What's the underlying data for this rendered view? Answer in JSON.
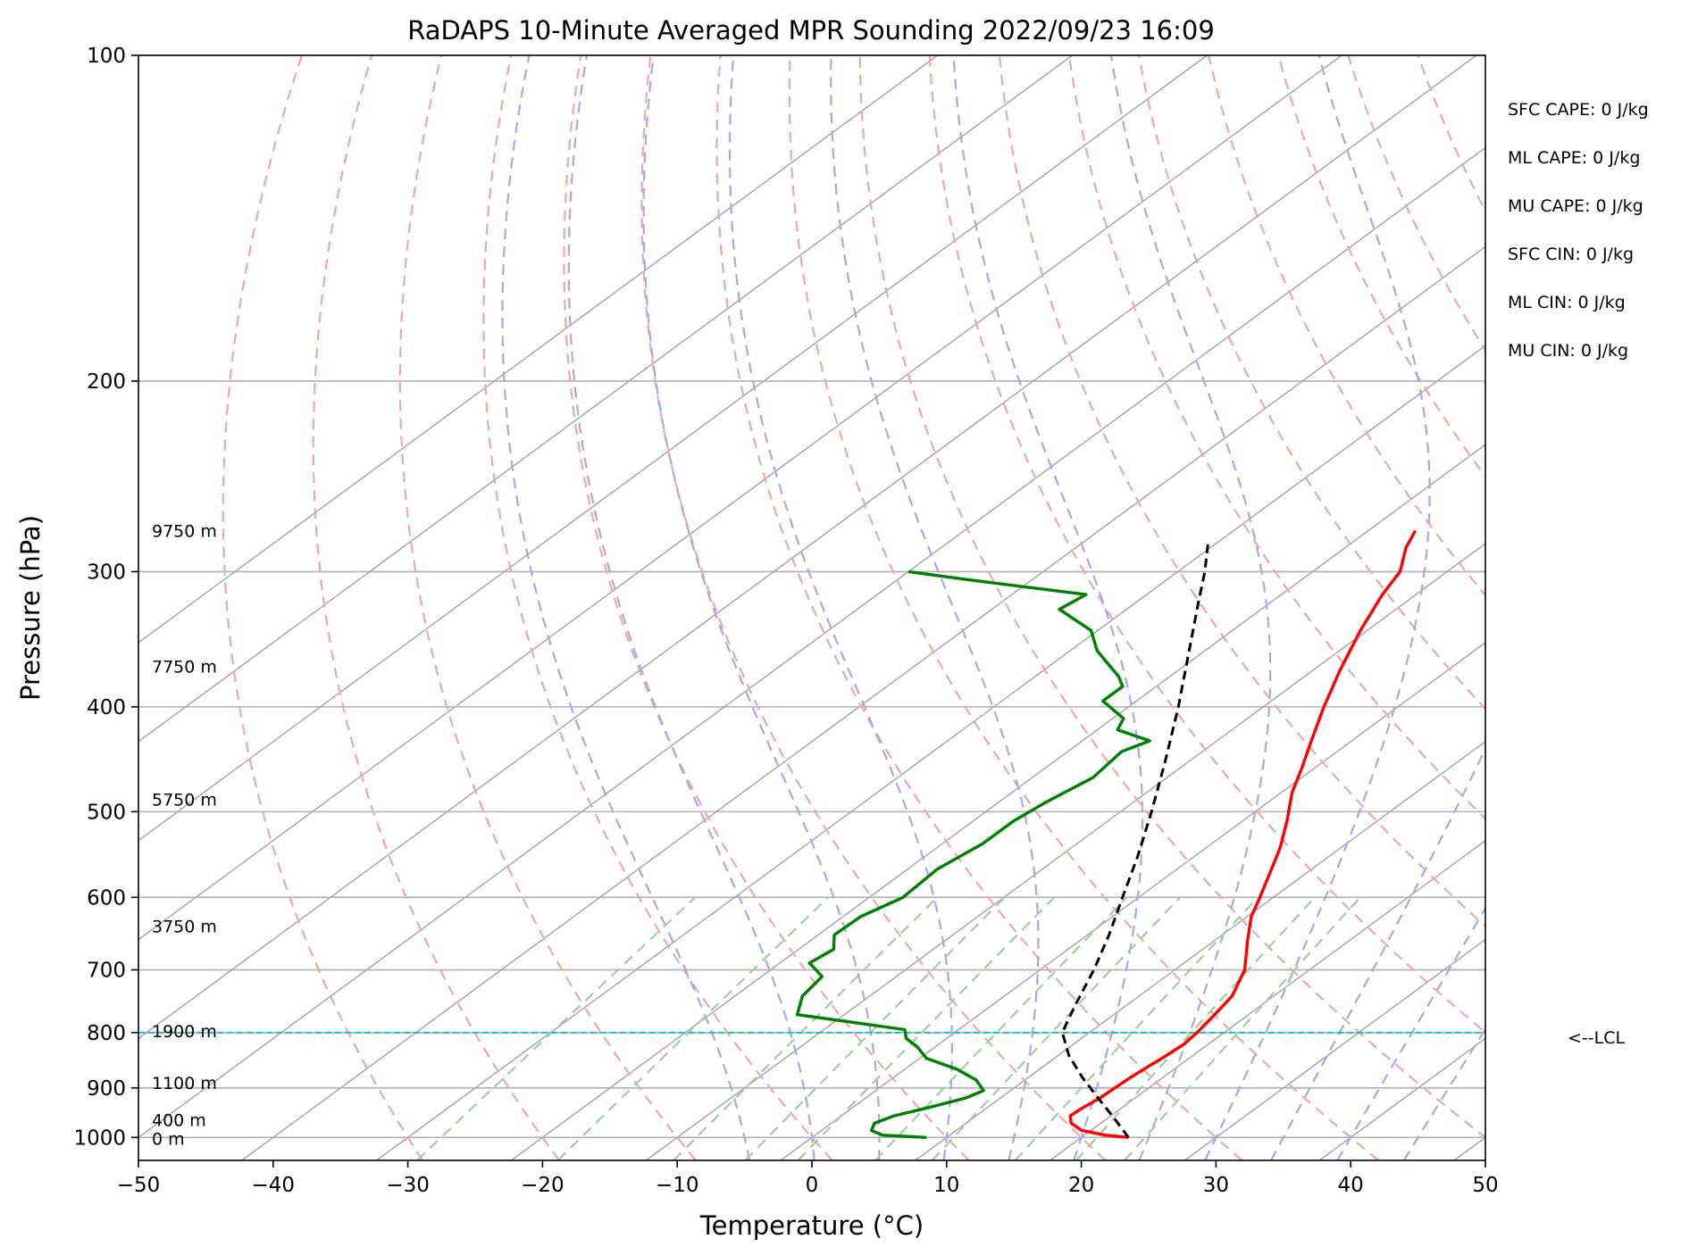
{
  "chart_data": {
    "type": "line",
    "title": "RaDAPS 10-Minute Averaged MPR Sounding 2022/09/23 16:09",
    "xlabel": "Temperature (°C)",
    "ylabel": "Pressure (hPa)",
    "xlim": [
      -50,
      50
    ],
    "ylim": [
      1050,
      100
    ],
    "y_scale": "log",
    "x_ticks": [
      -50,
      -40,
      -30,
      -20,
      -10,
      0,
      10,
      20,
      30,
      40,
      50
    ],
    "x_tick_labels": [
      "−50",
      "−40",
      "−30",
      "−20",
      "−10",
      "0",
      "10",
      "20",
      "30",
      "40",
      "50"
    ],
    "y_ticks": [
      100,
      200,
      300,
      400,
      500,
      600,
      700,
      800,
      900,
      1000
    ],
    "y_tick_labels": [
      "100",
      "200",
      "300",
      "400",
      "500",
      "600",
      "700",
      "800",
      "900",
      "1000"
    ],
    "grid": true,
    "colors": {
      "temperature": "#ff0000",
      "dewpoint": "#008000",
      "parcel": "#000000",
      "lcl_line": "#17becf",
      "isotherm": "#a8a8a8",
      "dry_adiabat": "#f4a6a6",
      "moist_adiabat": "#a6a6f4",
      "mixing_ratio": "#9fcf9f"
    },
    "series": [
      {
        "key": "temperature",
        "values": [
          [
            1000,
            23.5
          ],
          [
            995,
            21.5
          ],
          [
            985,
            19.3
          ],
          [
            970,
            17.8
          ],
          [
            955,
            17.0
          ],
          [
            940,
            17.1
          ],
          [
            920,
            17.4
          ],
          [
            900,
            17.5
          ],
          [
            880,
            17.6
          ],
          [
            860,
            17.8
          ],
          [
            845,
            18.0
          ],
          [
            820,
            18.2
          ],
          [
            800,
            18.0
          ],
          [
            770,
            17.5
          ],
          [
            740,
            16.9
          ],
          [
            700,
            15.2
          ],
          [
            660,
            12.6
          ],
          [
            625,
            10.3
          ],
          [
            600,
            9.0
          ],
          [
            570,
            7.3
          ],
          [
            540,
            5.5
          ],
          [
            510,
            3.3
          ],
          [
            480,
            0.8
          ],
          [
            455,
            -1.0
          ],
          [
            430,
            -3.0
          ],
          [
            400,
            -5.5
          ],
          [
            370,
            -8.0
          ],
          [
            340,
            -10.5
          ],
          [
            315,
            -12.5
          ],
          [
            300,
            -13.5
          ],
          [
            285,
            -15.5
          ],
          [
            275,
            -16.5
          ]
        ]
      },
      {
        "key": "dewpoint",
        "values": [
          [
            1000,
            8.5
          ],
          [
            995,
            5.0
          ],
          [
            985,
            3.7
          ],
          [
            970,
            3.2
          ],
          [
            955,
            3.9
          ],
          [
            940,
            5.5
          ],
          [
            920,
            7.4
          ],
          [
            905,
            8.0
          ],
          [
            885,
            6.4
          ],
          [
            865,
            3.9
          ],
          [
            845,
            0.5
          ],
          [
            825,
            -1.3
          ],
          [
            810,
            -3.0
          ],
          [
            795,
            -4.0
          ],
          [
            770,
            -13.5
          ],
          [
            740,
            -15.0
          ],
          [
            710,
            -15.5
          ],
          [
            690,
            -17.8
          ],
          [
            670,
            -17.4
          ],
          [
            650,
            -18.8
          ],
          [
            625,
            -18.7
          ],
          [
            600,
            -17.5
          ],
          [
            565,
            -17.8
          ],
          [
            535,
            -17.0
          ],
          [
            510,
            -17.0
          ],
          [
            490,
            -16.5
          ],
          [
            465,
            -15.5
          ],
          [
            440,
            -16.0
          ],
          [
            430,
            -15.0
          ],
          [
            420,
            -18.5
          ],
          [
            410,
            -19.2
          ],
          [
            395,
            -22.5
          ],
          [
            383,
            -22.5
          ],
          [
            375,
            -23.8
          ],
          [
            355,
            -28.0
          ],
          [
            340,
            -30.5
          ],
          [
            325,
            -35.0
          ],
          [
            315,
            -34.5
          ],
          [
            305,
            -45.0
          ],
          [
            300,
            -50.0
          ]
        ]
      },
      {
        "key": "parcel",
        "values": [
          [
            1000,
            23.5
          ],
          [
            960,
            20.5
          ],
          [
            920,
            17.3
          ],
          [
            880,
            14.0
          ],
          [
            840,
            10.8
          ],
          [
            800,
            8.0
          ],
          [
            780,
            7.2
          ],
          [
            750,
            6.0
          ],
          [
            700,
            4.0
          ],
          [
            650,
            1.6
          ],
          [
            600,
            -1.2
          ],
          [
            550,
            -4.2
          ],
          [
            500,
            -7.7
          ],
          [
            450,
            -11.7
          ],
          [
            400,
            -16.3
          ],
          [
            360,
            -20.6
          ],
          [
            320,
            -25.4
          ],
          [
            300,
            -28.0
          ],
          [
            280,
            -31.0
          ]
        ]
      }
    ],
    "isotherms": [
      -100,
      -90,
      -80,
      -70,
      -60,
      -50,
      -40,
      -30,
      -20,
      -10,
      0,
      10,
      20,
      30,
      40,
      50
    ],
    "dry_adiabats_C": [
      -30,
      -20,
      -10,
      0,
      10,
      20,
      30,
      40,
      50,
      60,
      70,
      80,
      90,
      100,
      110,
      120,
      130,
      140,
      150
    ],
    "moist_adiabats_C": [
      -5,
      0,
      5,
      10,
      15,
      20,
      25,
      30,
      35,
      40,
      45
    ],
    "mixing_ratios_gkg": [
      0.4,
      1,
      2,
      3,
      4,
      6,
      8,
      12,
      16,
      20
    ],
    "lcl": {
      "pressure": 800,
      "label": "<--LCL"
    },
    "height_labels": [
      {
        "pressure": 275,
        "label": "9750 m"
      },
      {
        "pressure": 367,
        "label": "7750 m"
      },
      {
        "pressure": 487,
        "label": "5750 m"
      },
      {
        "pressure": 638,
        "label": "3750 m"
      },
      {
        "pressure": 797,
        "label": "1900 m"
      },
      {
        "pressure": 890,
        "label": "1100 m"
      },
      {
        "pressure": 963,
        "label": "400 m"
      },
      {
        "pressure": 1002,
        "label": "0 m"
      }
    ],
    "indices": [
      "SFC CAPE: 0 J/kg",
      "ML CAPE: 0 J/kg",
      "MU CAPE: 0 J/kg",
      "SFC CIN: 0 J/kg",
      "ML CIN: 0 J/kg",
      "MU CIN: 0 J/kg"
    ]
  }
}
